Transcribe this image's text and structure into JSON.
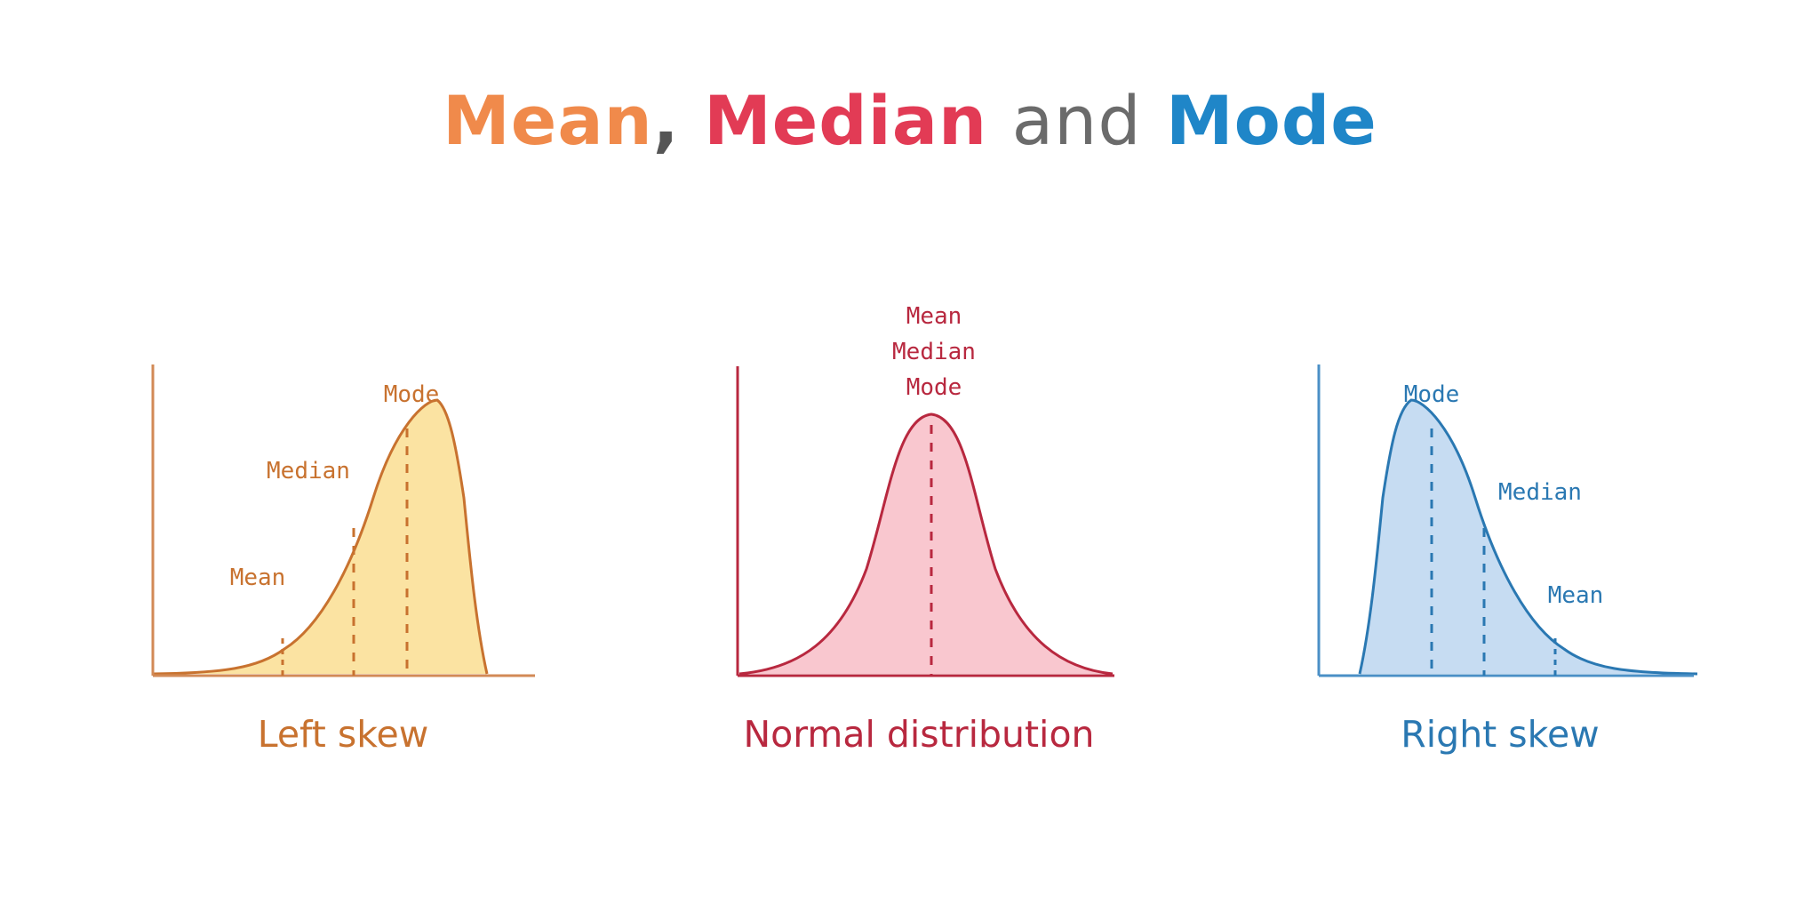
{
  "title": {
    "part1": "Mean",
    "part2": ",",
    "part3": "Median",
    "part4": "and",
    "part5": "Mode",
    "colors": {
      "mean": "#f08a4b",
      "comma": "#555555",
      "median": "#e23b55",
      "and": "#6b6b6b",
      "mode": "#1f86c8"
    }
  },
  "panels": {
    "left": {
      "label": "Left skew",
      "annotations": {
        "mode": "Mode",
        "median": "Median",
        "mean": "Mean"
      },
      "colors": {
        "stroke": "#c8722f",
        "fill": "#fbe3a2",
        "axis": "#d28a56",
        "text": "#c8722f"
      }
    },
    "normal": {
      "label": "Normal distribution",
      "annotations": {
        "mean": "Mean",
        "median": "Median",
        "mode": "Mode"
      },
      "colors": {
        "stroke": "#b8283f",
        "fill": "#f9c7cf",
        "axis": "#b8283f",
        "text": "#b8283f"
      }
    },
    "right": {
      "label": "Right skew",
      "annotations": {
        "mode": "Mode",
        "median": "Median",
        "mean": "Mean"
      },
      "colors": {
        "stroke": "#2a78b2",
        "fill": "#c6dcf2",
        "axis": "#4a8fc6",
        "text": "#2a78b2"
      }
    }
  }
}
